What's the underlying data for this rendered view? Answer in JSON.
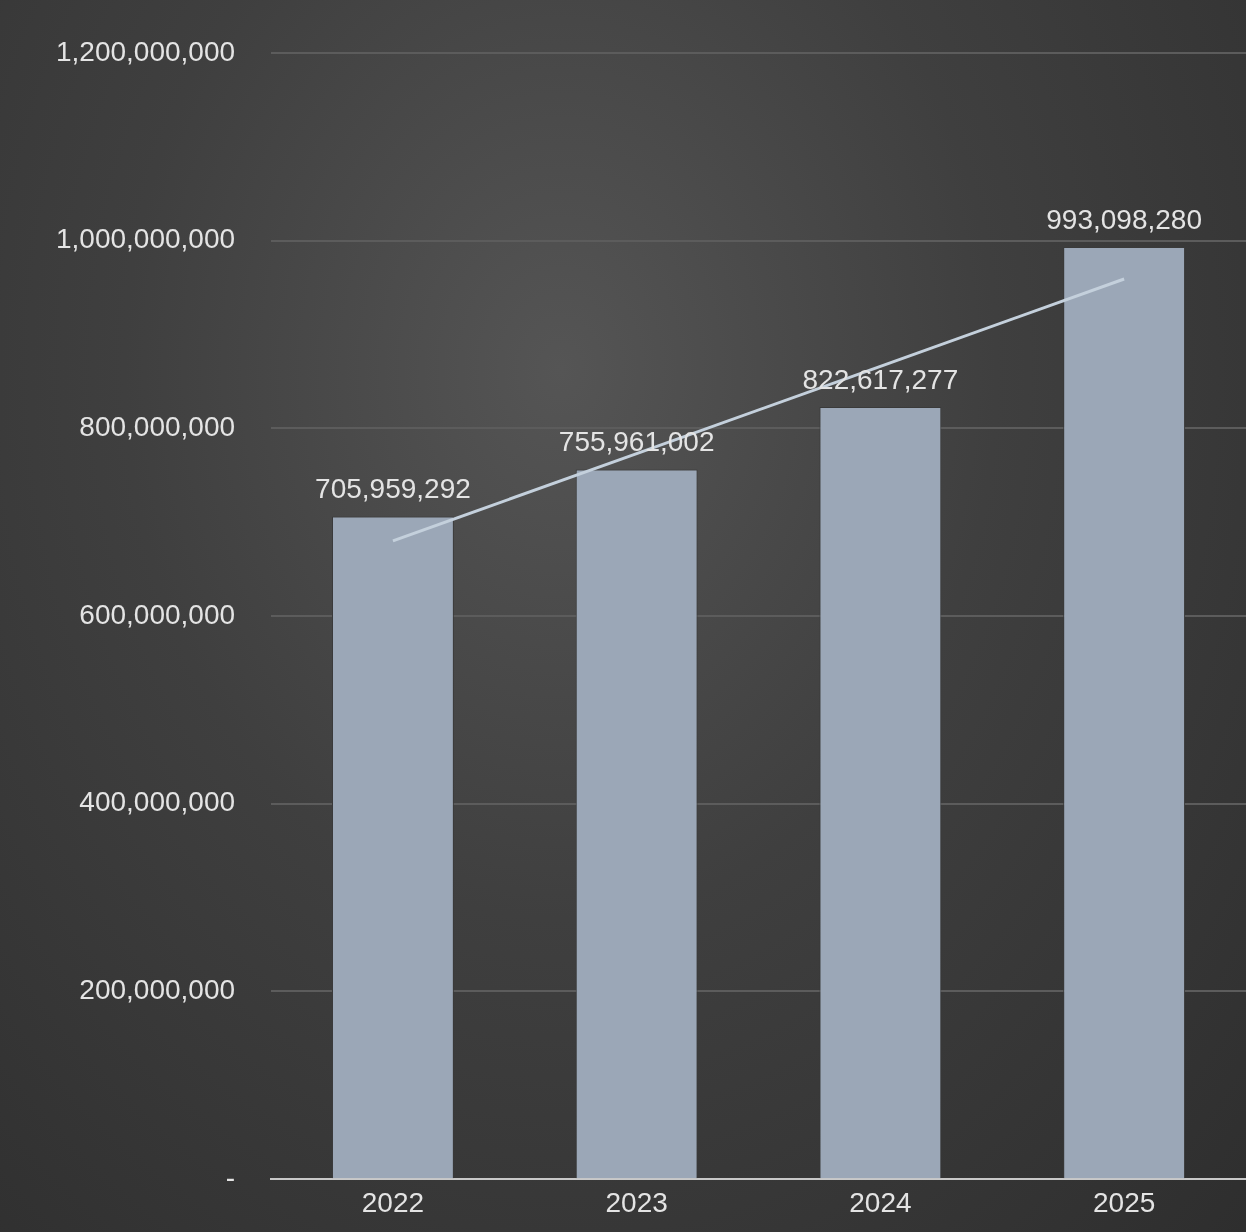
{
  "chart_data": {
    "type": "bar",
    "categories": [
      "2022",
      "2023",
      "2024",
      "2025"
    ],
    "series": [
      {
        "color": "#9ba7b7",
        "values": [
          705959292,
          755961002,
          822617277,
          993098280
        ],
        "value_labels": [
          "705,959,292",
          "755,961,002",
          "822,617,277",
          "993,098,280"
        ]
      },
      {
        "type": "line",
        "color": "#c4d0dc",
        "marker": "none",
        "values": [
          680000000,
          773000000,
          866000000,
          959000000
        ]
      }
    ],
    "ylim": [
      0,
      1200000000
    ],
    "yticks": [
      {
        "value": 0,
        "label": "-"
      },
      {
        "value": 200000000,
        "label": "200,000,000"
      },
      {
        "value": 400000000,
        "label": "400,000,000"
      },
      {
        "value": 600000000,
        "label": "600,000,000"
      },
      {
        "value": 800000000,
        "label": "800,000,000"
      },
      {
        "value": 1000000000,
        "label": "1,000,000,000"
      },
      {
        "value": 1200000000,
        "label": "1,200,000,000"
      }
    ],
    "grid": "y",
    "legend": false
  }
}
